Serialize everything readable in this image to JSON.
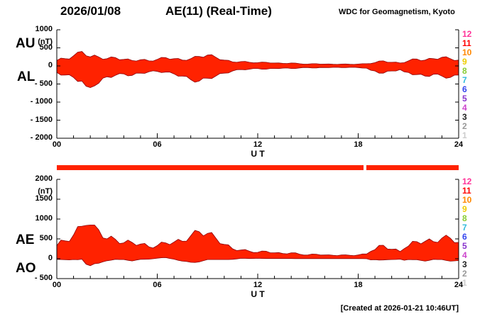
{
  "header": {
    "date": "2026/01/08",
    "title": "AE(11) (Real-Time)",
    "credit": "WDC for Geomagnetism, Kyoto"
  },
  "footer": {
    "created": "[Created at 2026-01-21 10:46UT]"
  },
  "station_numbers": [
    {
      "label": "12",
      "color": "#ff3399"
    },
    {
      "label": "11",
      "color": "#ff0000"
    },
    {
      "label": "10",
      "color": "#ff8800"
    },
    {
      "label": "9",
      "color": "#eecc00"
    },
    {
      "label": "8",
      "color": "#88cc33"
    },
    {
      "label": "7",
      "color": "#33bbdd"
    },
    {
      "label": "6",
      "color": "#3344ee"
    },
    {
      "label": "5",
      "color": "#8833cc"
    },
    {
      "label": "4",
      "color": "#cc44cc"
    },
    {
      "label": "3",
      "color": "#222222"
    },
    {
      "label": "2",
      "color": "#999999"
    },
    {
      "label": "1",
      "color": "#cccccc"
    }
  ],
  "availability_bar": {
    "color": "#ff2200",
    "segments": [
      [
        0,
        18.3
      ],
      [
        18.5,
        24
      ]
    ]
  },
  "chart_data": [
    {
      "type": "area",
      "name": "AU-AL panel",
      "xlabel": "U T",
      "ylabel": "(nT)",
      "xlim": [
        0,
        24
      ],
      "ylim": [
        -2000,
        1000
      ],
      "x_hours_step": 0.25,
      "grid": false,
      "xticks": [
        0,
        6,
        12,
        18,
        24
      ],
      "xtick_labels": [
        "00",
        "06",
        "12",
        "18",
        "24"
      ],
      "yticks": [
        1000,
        500,
        0,
        -500,
        -1000,
        -1500,
        -2000
      ],
      "ytick_labels": [
        "1000",
        "500",
        "0",
        "- 500",
        "- 1000",
        "- 1500",
        "- 2000"
      ],
      "left_labels": [
        "AU",
        "AL"
      ],
      "fill_color": "#ff2200",
      "line_color": "#8b0000",
      "series": [
        {
          "name": "AU",
          "values": [
            150,
            215,
            200,
            190,
            280,
            380,
            400,
            280,
            250,
            300,
            250,
            185,
            200,
            250,
            230,
            170,
            180,
            195,
            150,
            135,
            170,
            180,
            140,
            135,
            180,
            235,
            230,
            185,
            200,
            205,
            160,
            155,
            200,
            265,
            260,
            240,
            300,
            310,
            240,
            170,
            160,
            155,
            110,
            100,
            120,
            125,
            100,
            85,
            90,
            105,
            100,
            80,
            80,
            83,
            70,
            67,
            80,
            78,
            60,
            49,
            50,
            61,
            60,
            49,
            50,
            52,
            45,
            42,
            50,
            52,
            45,
            42,
            50,
            61,
            60,
            65,
            90,
            135,
            140,
            100,
            100,
            105,
            80,
            90,
            140,
            195,
            190,
            145,
            160,
            210,
            200,
            185,
            240,
            255,
            200,
            150,
            160
          ]
        },
        {
          "name": "AL",
          "values": [
            -180,
            -255,
            -250,
            -245,
            -320,
            -430,
            -420,
            -560,
            -600,
            -550,
            -480,
            -340,
            -300,
            -320,
            -260,
            -210,
            -220,
            -275,
            -260,
            -200,
            -200,
            -205,
            -160,
            -135,
            -150,
            -185,
            -170,
            -170,
            -220,
            -285,
            -280,
            -290,
            -380,
            -450,
            -420,
            -335,
            -340,
            -350,
            -280,
            -210,
            -200,
            -195,
            -140,
            -105,
            -100,
            -107,
            -90,
            -70,
            -70,
            -90,
            -90,
            -70,
            -70,
            -73,
            -60,
            -57,
            -70,
            -70,
            -55,
            -44,
            -45,
            -56,
            -55,
            -44,
            -45,
            -47,
            -40,
            -37,
            -45,
            -47,
            -40,
            -37,
            -45,
            -59,
            -60,
            -120,
            -140,
            -200,
            -200,
            -145,
            -140,
            -140,
            -100,
            -165,
            -180,
            -245,
            -240,
            -230,
            -280,
            -290,
            -230,
            -225,
            -280,
            -340,
            -320,
            -255,
            -250
          ]
        }
      ]
    },
    {
      "type": "area",
      "name": "AE-AO panel",
      "xlabel": "U T",
      "ylabel": "(nT)",
      "xlim": [
        0,
        24
      ],
      "ylim": [
        -500,
        2000
      ],
      "x_hours_step": 0.25,
      "grid": false,
      "xticks": [
        0,
        6,
        12,
        18,
        24
      ],
      "xtick_labels": [
        "00",
        "06",
        "12",
        "18",
        "24"
      ],
      "yticks": [
        2000,
        1500,
        1000,
        500,
        0,
        -500
      ],
      "ytick_labels": [
        "2000",
        "1500",
        "1000",
        "500",
        "0",
        "- 500"
      ],
      "left_labels": [
        "AE",
        "AO"
      ],
      "fill_color": "#ff2200",
      "line_color": "#8b0000",
      "series": [
        {
          "name": "AE",
          "values": [
            330,
            470,
            450,
            435,
            600,
            810,
            820,
            840,
            850,
            850,
            730,
            525,
            500,
            570,
            490,
            380,
            400,
            470,
            410,
            335,
            370,
            385,
            300,
            270,
            330,
            420,
            400,
            355,
            420,
            490,
            440,
            445,
            580,
            715,
            680,
            575,
            640,
            660,
            520,
            380,
            360,
            350,
            250,
            205,
            220,
            232,
            190,
            155,
            160,
            195,
            190,
            150,
            150,
            156,
            130,
            124,
            150,
            148,
            115,
            93,
            95,
            117,
            115,
            93,
            95,
            99,
            85,
            79,
            95,
            99,
            85,
            79,
            95,
            120,
            120,
            185,
            230,
            335,
            340,
            245,
            240,
            245,
            180,
            255,
            320,
            440,
            430,
            375,
            440,
            500,
            430,
            410,
            520,
            595,
            520,
            405,
            410
          ]
        },
        {
          "name": "AO",
          "values": [
            -15,
            -20,
            -25,
            -28,
            -20,
            -25,
            -10,
            -140,
            -175,
            -125,
            -115,
            -78,
            -50,
            -35,
            -15,
            -20,
            -20,
            -40,
            -55,
            -33,
            -15,
            -13,
            -10,
            0,
            15,
            25,
            30,
            8,
            -10,
            -40,
            -60,
            -68,
            -90,
            -93,
            -80,
            -48,
            -20,
            -20,
            -20,
            -20,
            -20,
            -20,
            -15,
            -3,
            10,
            9,
            5,
            8,
            10,
            8,
            5,
            5,
            5,
            5,
            5,
            5,
            5,
            4,
            3,
            3,
            3,
            3,
            3,
            3,
            3,
            3,
            3,
            3,
            3,
            3,
            3,
            3,
            3,
            1,
            0,
            -28,
            -25,
            -33,
            -30,
            -23,
            -20,
            -18,
            -10,
            -38,
            -20,
            -25,
            -25,
            -43,
            -60,
            -40,
            -15,
            -20,
            -20,
            -43,
            -60,
            -53,
            -45
          ]
        }
      ]
    }
  ]
}
